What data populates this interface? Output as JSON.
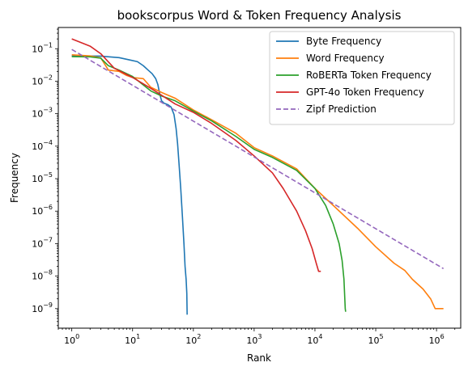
{
  "chart_data": {
    "type": "line",
    "title": "bookscorpus Word & Token Frequency Analysis",
    "xlabel": "Rank",
    "ylabel": "Frequency",
    "xscale": "log",
    "yscale": "log",
    "xlim": [
      0.6,
      2500000
    ],
    "ylim": [
      2.5e-10,
      0.45
    ],
    "x_ticks": [
      {
        "value": 1,
        "base": "10",
        "exp": "0"
      },
      {
        "value": 10,
        "base": "10",
        "exp": "1"
      },
      {
        "value": 100,
        "base": "10",
        "exp": "2"
      },
      {
        "value": 1000,
        "base": "10",
        "exp": "3"
      },
      {
        "value": 10000,
        "base": "10",
        "exp": "4"
      },
      {
        "value": 100000,
        "base": "10",
        "exp": "5"
      },
      {
        "value": 1000000,
        "base": "10",
        "exp": "6"
      }
    ],
    "y_ticks": [
      {
        "value": 1e-09,
        "base": "10",
        "exp": "−9"
      },
      {
        "value": 1e-08,
        "base": "10",
        "exp": "−8"
      },
      {
        "value": 1e-07,
        "base": "10",
        "exp": "−7"
      },
      {
        "value": 1e-06,
        "base": "10",
        "exp": "−6"
      },
      {
        "value": 1e-05,
        "base": "10",
        "exp": "−5"
      },
      {
        "value": 0.0001,
        "base": "10",
        "exp": "−4"
      },
      {
        "value": 0.001,
        "base": "10",
        "exp": "−3"
      },
      {
        "value": 0.01,
        "base": "10",
        "exp": "−2"
      },
      {
        "value": 0.1,
        "base": "10",
        "exp": "−1"
      }
    ],
    "grid": false,
    "legend_position": "top-right",
    "series": [
      {
        "name": "Byte Frequency",
        "color": "#1f77b4",
        "dash": "solid",
        "points": [
          [
            1,
            0.06
          ],
          [
            3,
            0.059
          ],
          [
            6,
            0.053
          ],
          [
            9,
            0.045
          ],
          [
            12,
            0.04
          ],
          [
            15,
            0.03
          ],
          [
            18,
            0.022
          ],
          [
            21,
            0.017
          ],
          [
            24,
            0.012
          ],
          [
            26,
            0.008
          ],
          [
            28,
            0.004
          ],
          [
            30,
            0.0025
          ],
          [
            33,
            0.0021
          ],
          [
            38,
            0.0019
          ],
          [
            43,
            0.0016
          ],
          [
            48,
            0.00095
          ],
          [
            52,
            0.00035
          ],
          [
            55,
            0.00012
          ],
          [
            58,
            3e-05
          ],
          [
            62,
            5e-06
          ],
          [
            66,
            7e-07
          ],
          [
            70,
            1e-07
          ],
          [
            73,
            2e-08
          ],
          [
            76,
            8e-09
          ],
          [
            78,
            3e-09
          ],
          [
            79,
            6.5e-10
          ]
        ]
      },
      {
        "name": "Word Frequency",
        "color": "#ff7f0e",
        "dash": "solid",
        "points": [
          [
            1,
            0.065
          ],
          [
            2,
            0.06
          ],
          [
            3,
            0.052
          ],
          [
            4,
            0.022
          ],
          [
            6,
            0.02
          ],
          [
            8,
            0.015
          ],
          [
            10,
            0.013
          ],
          [
            15,
            0.012
          ],
          [
            20,
            0.0065
          ],
          [
            30,
            0.0045
          ],
          [
            50,
            0.003
          ],
          [
            100,
            0.0013
          ],
          [
            200,
            0.00065
          ],
          [
            500,
            0.00025
          ],
          [
            1000,
            9e-05
          ],
          [
            2000,
            5e-05
          ],
          [
            5000,
            2e-05
          ],
          [
            10000,
            5e-06
          ],
          [
            20000,
            1.5e-06
          ],
          [
            50000,
            3e-07
          ],
          [
            100000,
            8e-08
          ],
          [
            200000,
            2.5e-08
          ],
          [
            300000,
            1.5e-08
          ],
          [
            400000,
            8e-09
          ],
          [
            600000,
            4e-09
          ],
          [
            800000,
            2e-09
          ],
          [
            950000,
            1e-09
          ],
          [
            1300000,
            1e-09
          ]
        ]
      },
      {
        "name": "RoBERTa Token Frequency",
        "color": "#2ca02c",
        "dash": "solid",
        "points": [
          [
            1,
            0.057
          ],
          [
            2,
            0.056
          ],
          [
            3,
            0.051
          ],
          [
            4,
            0.03
          ],
          [
            6,
            0.022
          ],
          [
            10,
            0.014
          ],
          [
            20,
            0.005
          ],
          [
            30,
            0.0035
          ],
          [
            50,
            0.0025
          ],
          [
            100,
            0.0012
          ],
          [
            200,
            0.0006
          ],
          [
            500,
            0.0002
          ],
          [
            1000,
            8e-05
          ],
          [
            2000,
            4.5e-05
          ],
          [
            5000,
            1.8e-05
          ],
          [
            10000,
            5e-06
          ],
          [
            15000,
            1.5e-06
          ],
          [
            20000,
            4e-07
          ],
          [
            25000,
            1e-07
          ],
          [
            28000,
            3e-08
          ],
          [
            30000,
            8e-09
          ],
          [
            31500,
            1e-09
          ],
          [
            32000,
            8e-10
          ]
        ]
      },
      {
        "name": "GPT-4o Token Frequency",
        "color": "#d62728",
        "dash": "solid",
        "points": [
          [
            1,
            0.2
          ],
          [
            2,
            0.12
          ],
          [
            3,
            0.07
          ],
          [
            5,
            0.025
          ],
          [
            10,
            0.013
          ],
          [
            20,
            0.006
          ],
          [
            50,
            0.002
          ],
          [
            100,
            0.0011
          ],
          [
            200,
            0.0005
          ],
          [
            500,
            0.00015
          ],
          [
            1000,
            5e-05
          ],
          [
            2000,
            1.5e-05
          ],
          [
            3000,
            5e-06
          ],
          [
            5000,
            1e-06
          ],
          [
            7000,
            2.5e-07
          ],
          [
            9000,
            7e-08
          ],
          [
            10500,
            2.5e-08
          ],
          [
            11500,
            1.4e-08
          ],
          [
            12500,
            1.4e-08
          ]
        ]
      },
      {
        "name": "Zipf Prediction",
        "color": "#9467bd",
        "dash": "dashed",
        "points": [
          [
            1,
            0.095
          ],
          [
            1300000,
            1.7e-08
          ]
        ]
      }
    ]
  }
}
